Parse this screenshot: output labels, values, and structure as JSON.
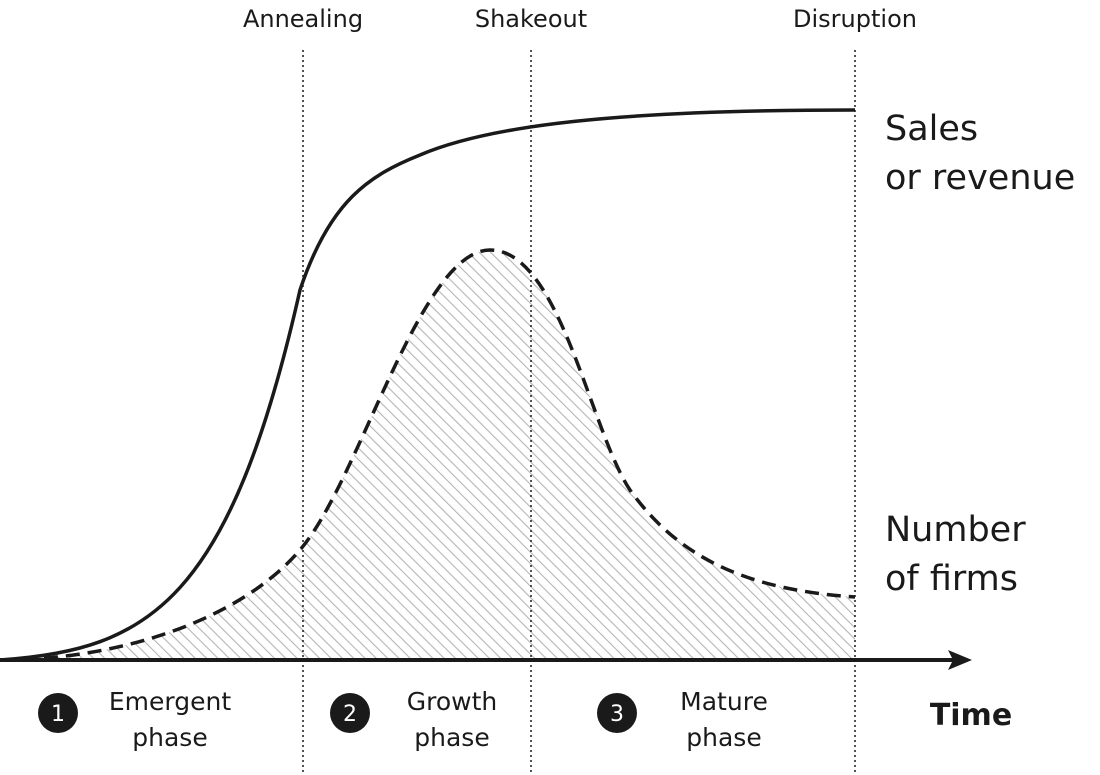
{
  "milestones": {
    "annealing": "Annealing",
    "shakeout": "Shakeout",
    "disruption": "Disruption"
  },
  "curves": {
    "sales": {
      "line1": "Sales",
      "line2": "or revenue"
    },
    "firms": {
      "line1": "Number",
      "line2": "of firms"
    }
  },
  "phases": [
    {
      "number": "1",
      "line1": "Emergent",
      "line2": "phase"
    },
    {
      "number": "2",
      "line1": "Growth",
      "line2": "phase"
    },
    {
      "number": "3",
      "line1": "Mature",
      "line2": "phase"
    }
  ],
  "axis": {
    "label": "Time"
  },
  "colors": {
    "ink": "#1a1a1a",
    "hatch": "#b5b5b5",
    "background": "#ffffff"
  }
}
